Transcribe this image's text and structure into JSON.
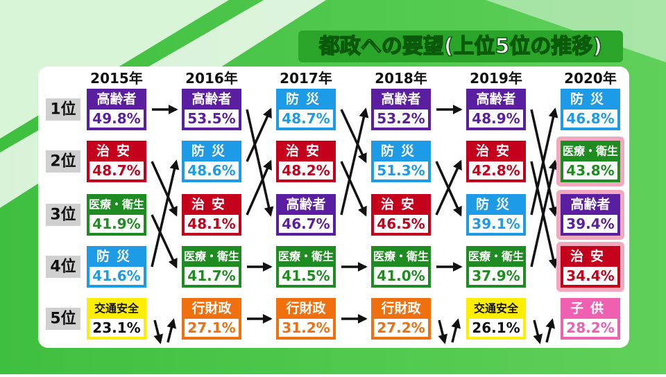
{
  "title": "都政への要望(上位5位の推移)",
  "ranks": [
    "1位",
    "2位",
    "3位",
    "4位",
    "5位"
  ],
  "columns": [
    {
      "year": "2015年",
      "cells": [
        {
          "label": "高齢者",
          "value": "49.8%",
          "color": "#5a1fa0"
        },
        {
          "label": "治安",
          "value": "48.7%",
          "color": "#c4001c"
        },
        {
          "label": "医療・衛生",
          "value": "41.9%",
          "color": "#1f8c22"
        },
        {
          "label": "防災",
          "value": "41.6%",
          "color": "#1e9be6"
        },
        {
          "label": "交通安全",
          "value": "23.1%",
          "color": "#ffee00"
        }
      ]
    },
    {
      "year": "2016年",
      "cells": [
        {
          "label": "高齢者",
          "value": "53.5%",
          "color": "#5a1fa0"
        },
        {
          "label": "防災",
          "value": "48.6%",
          "color": "#1e9be6"
        },
        {
          "label": "治安",
          "value": "48.1%",
          "color": "#c4001c"
        },
        {
          "label": "医療・衛生",
          "value": "41.7%",
          "color": "#1f8c22"
        },
        {
          "label": "行財政",
          "value": "27.1%",
          "color": "#f07010"
        }
      ]
    },
    {
      "year": "2017年",
      "cells": [
        {
          "label": "防災",
          "value": "48.7%",
          "color": "#1e9be6"
        },
        {
          "label": "治安",
          "value": "48.2%",
          "color": "#c4001c"
        },
        {
          "label": "高齢者",
          "value": "46.7%",
          "color": "#5a1fa0"
        },
        {
          "label": "医療・衛生",
          "value": "41.5%",
          "color": "#1f8c22"
        },
        {
          "label": "行財政",
          "value": "31.2%",
          "color": "#f07010"
        }
      ]
    },
    {
      "year": "2018年",
      "cells": [
        {
          "label": "高齢者",
          "value": "53.2%",
          "color": "#5a1fa0"
        },
        {
          "label": "防災",
          "value": "51.3%",
          "color": "#1e9be6"
        },
        {
          "label": "治安",
          "value": "46.5%",
          "color": "#c4001c"
        },
        {
          "label": "医療・衛生",
          "value": "41.0%",
          "color": "#1f8c22"
        },
        {
          "label": "行財政",
          "value": "27.2%",
          "color": "#f07010"
        }
      ]
    },
    {
      "year": "2019年",
      "cells": [
        {
          "label": "高齢者",
          "value": "48.9%",
          "color": "#5a1fa0"
        },
        {
          "label": "治安",
          "value": "42.8%",
          "color": "#c4001c"
        },
        {
          "label": "防災",
          "value": "39.1%",
          "color": "#1e9be6"
        },
        {
          "label": "医療・衛生",
          "value": "37.9%",
          "color": "#1f8c22"
        },
        {
          "label": "交通安全",
          "value": "26.1%",
          "color": "#ffee00"
        }
      ]
    },
    {
      "year": "2020年",
      "cells": [
        {
          "label": "防災",
          "value": "46.8%",
          "color": "#1e9be6"
        },
        {
          "label": "医療・衛生",
          "value": "43.8%",
          "color": "#1f8c22",
          "highlight": true
        },
        {
          "label": "高齢者",
          "value": "39.4%",
          "color": "#5a1fa0",
          "highlight": true
        },
        {
          "label": "治安",
          "value": "34.4%",
          "color": "#c4001c",
          "highlight": true
        },
        {
          "label": "子供",
          "value": "28.2%",
          "color": "#f060b0"
        }
      ]
    }
  ]
}
